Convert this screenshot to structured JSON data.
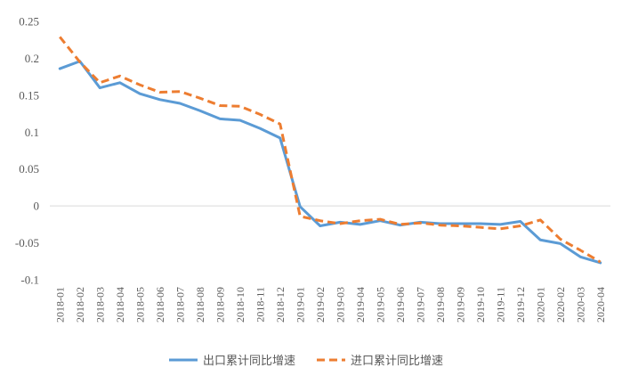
{
  "chart_data": {
    "type": "line",
    "title": "",
    "xlabel": "",
    "ylabel": "",
    "ylim": [
      -0.1,
      0.25
    ],
    "yticks": [
      0.25,
      0.2,
      0.15,
      0.1,
      0.05,
      0,
      -0.05,
      -0.1
    ],
    "ytick_labels": [
      "0.25",
      "0.2",
      "0.15",
      "0.1",
      "0.05",
      "0",
      "-0.05",
      "-0.1"
    ],
    "grid": false,
    "legend_position": "bottom",
    "categories": [
      "2018-01",
      "2018-02",
      "2018-03",
      "2018-04",
      "2018-05",
      "2018-06",
      "2018-07",
      "2018-08",
      "2018-09",
      "2018-10",
      "2018-11",
      "2018-12",
      "2019-01",
      "2019-02",
      "2019-03",
      "2019-04",
      "2019-05",
      "2019-06",
      "2019-07",
      "2019-08",
      "2019-09",
      "2019-10",
      "2019-11",
      "2019-12",
      "2020-01",
      "2020-02",
      "2020-03",
      "2020-04"
    ],
    "series": [
      {
        "name": "出口累计同比增速",
        "color": "#5B9BD5",
        "style": "solid",
        "values": [
          0.186,
          0.196,
          0.16,
          0.167,
          0.152,
          0.144,
          0.139,
          0.129,
          0.118,
          0.116,
          0.105,
          0.092,
          -0.001,
          -0.027,
          -0.022,
          -0.025,
          -0.02,
          -0.026,
          -0.022,
          -0.024,
          -0.024,
          -0.024,
          -0.025,
          -0.021,
          -0.046,
          -0.051,
          -0.069,
          -0.077
        ]
      },
      {
        "name": "进口累计同比增速",
        "color": "#ED7D31",
        "style": "dashed",
        "values": [
          0.229,
          0.195,
          0.167,
          0.176,
          0.164,
          0.154,
          0.155,
          0.146,
          0.136,
          0.135,
          0.124,
          0.111,
          -0.014,
          -0.02,
          -0.024,
          -0.02,
          -0.018,
          -0.025,
          -0.023,
          -0.026,
          -0.027,
          -0.029,
          -0.031,
          -0.027,
          -0.019,
          -0.045,
          -0.06,
          -0.076
        ]
      }
    ]
  }
}
